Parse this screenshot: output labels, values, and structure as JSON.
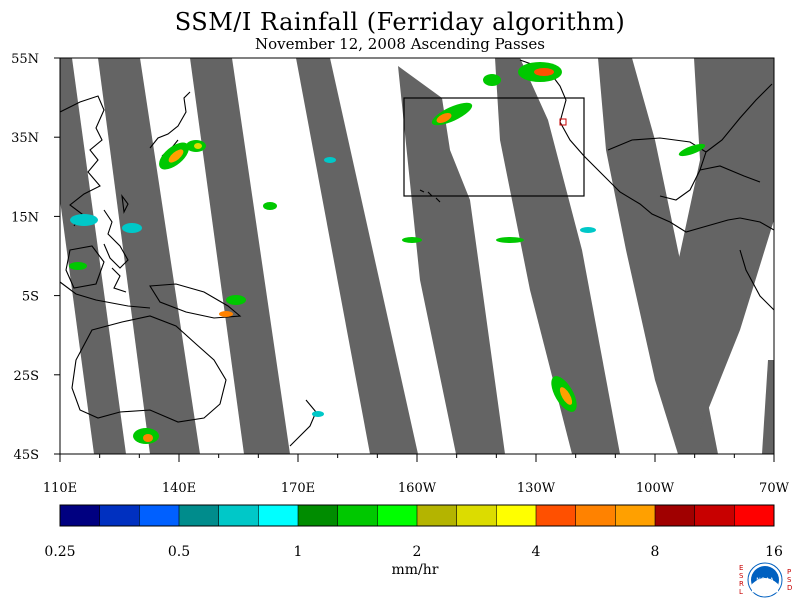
{
  "title": "SSM/I Rainfall (Ferriday algorithm)",
  "subtitle": "November 12, 2008  Ascending Passes",
  "lat_ticks": [
    "55N",
    "35N",
    "15N",
    "5S",
    "25S",
    "45S"
  ],
  "lon_ticks": [
    "110E",
    "140E",
    "170E",
    "160W",
    "130W",
    "100W",
    "70W"
  ],
  "colorbar": {
    "unit": "mm/hr",
    "labels": [
      "0.25",
      "0.5",
      "1",
      "2",
      "4",
      "8",
      "16"
    ],
    "colors": [
      "#000080",
      "#0030c0",
      "#0060ff",
      "#008c8c",
      "#00c8c8",
      "#00ffff",
      "#008c00",
      "#00c800",
      "#00ff00",
      "#b4b400",
      "#dcdc00",
      "#ffff00",
      "#ff5000",
      "#ff8200",
      "#ffa000",
      "#a00000",
      "#c80000",
      "#ff0000"
    ]
  },
  "logo": {
    "left_letters": "ESRL",
    "right_letters": "PSD",
    "center": "NOAA"
  }
}
